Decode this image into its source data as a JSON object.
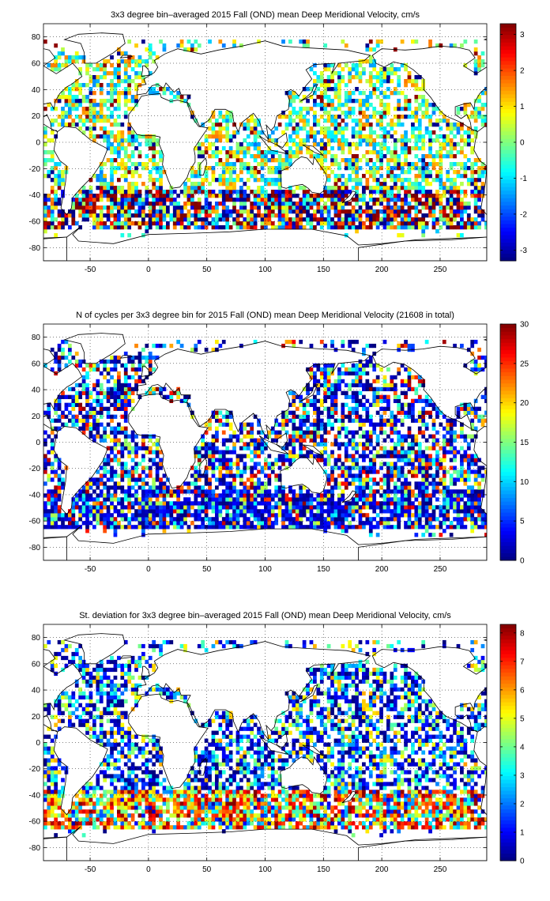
{
  "chart_data": [
    {
      "type": "heatmap",
      "title": "3x3 degree bin–averaged 2015 Fall (OND) mean Deep Meridional Velocity, cm/s",
      "xlabel": "",
      "ylabel": "",
      "xlim": [
        -90,
        290
      ],
      "ylim": [
        -90,
        90
      ],
      "xticks": [
        -50,
        0,
        50,
        100,
        150,
        200,
        250
      ],
      "yticks": [
        -80,
        -60,
        -40,
        -20,
        0,
        20,
        40,
        60,
        80
      ],
      "grid": true,
      "colormap": "jet",
      "colorbar": {
        "range": [
          -3.3,
          3.3
        ],
        "ticks": [
          -3,
          -2,
          -1,
          0,
          1,
          2,
          3
        ]
      },
      "bin_size_deg": 3,
      "field": "velocity",
      "seed": 11
    },
    {
      "type": "heatmap",
      "title": "N of cycles per 3x3 degree bin for 2015 Fall (OND) mean Deep Meridional Velocity (21608 in total)",
      "xlabel": "",
      "ylabel": "",
      "xlim": [
        -90,
        290
      ],
      "ylim": [
        -90,
        90
      ],
      "xticks": [
        -50,
        0,
        50,
        100,
        150,
        200,
        250
      ],
      "yticks": [
        -80,
        -60,
        -40,
        -20,
        0,
        20,
        40,
        60,
        80
      ],
      "grid": true,
      "colormap": "jet",
      "colorbar": {
        "range": [
          0,
          30
        ],
        "ticks": [
          0,
          5,
          10,
          15,
          20,
          25,
          30
        ]
      },
      "bin_size_deg": 3,
      "field": "count",
      "seed": 23
    },
    {
      "type": "heatmap",
      "title": "St. deviation for 3x3 degree bin–averaged 2015 Fall (OND) mean Deep Meridional Velocity, cm/s",
      "xlabel": "",
      "ylabel": "",
      "xlim": [
        -90,
        290
      ],
      "ylim": [
        -90,
        90
      ],
      "xticks": [
        -50,
        0,
        50,
        100,
        150,
        200,
        250
      ],
      "yticks": [
        -80,
        -60,
        -40,
        -20,
        0,
        20,
        40,
        60,
        80
      ],
      "grid": true,
      "colormap": "jet",
      "colorbar": {
        "range": [
          0,
          8.3
        ],
        "ticks": [
          0,
          1,
          2,
          3,
          4,
          5,
          6,
          7,
          8
        ]
      },
      "bin_size_deg": 3,
      "field": "stdev",
      "seed": 37
    }
  ]
}
